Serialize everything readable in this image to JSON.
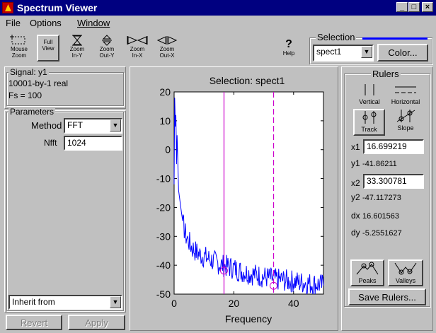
{
  "window": {
    "title": "Spectrum Viewer",
    "minimize": "_",
    "maximize": "□",
    "close": "×"
  },
  "menu": {
    "file": "File",
    "options": "Options",
    "window": "Window"
  },
  "toolbar": {
    "mouse_zoom": {
      "line1": "Mouse",
      "line2": "Zoom",
      "icon": "mouse-zoom-icon"
    },
    "full_view": {
      "line1": "Full",
      "line2": "View"
    },
    "zoom_in_y": {
      "line1": "Zoom",
      "line2": "In-Y",
      "icon": "zoom-in-y-icon"
    },
    "zoom_out_y": {
      "line1": "Zoom",
      "line2": "Out-Y",
      "icon": "zoom-out-y-icon"
    },
    "zoom_in_x": {
      "line1": "Zoom",
      "line2": "In-X",
      "icon": "zoom-in-x-icon"
    },
    "zoom_out_x": {
      "line1": "Zoom",
      "line2": "Out-X",
      "icon": "zoom-out-x-icon"
    },
    "help": {
      "symbol": "?",
      "label": "Help"
    }
  },
  "selection": {
    "group_label": "Selection",
    "value": "spect1",
    "color_button": "Color...",
    "line_color": "#0000ff"
  },
  "signal": {
    "group_label": "Signal: y1",
    "line1": "10001-by-1 real",
    "line2": "Fs = 100"
  },
  "parameters": {
    "group_label": "Parameters",
    "method_label": "Method",
    "method_value": "FFT",
    "nfft_label": "Nfft",
    "nfft_value": "1024",
    "inherit_value": "Inherit from",
    "revert": "Revert",
    "apply": "Apply"
  },
  "rulers": {
    "group_label": "Rulers",
    "vertical": "Vertical",
    "horizontal": "Horizontal",
    "track": "Track",
    "slope": "Slope",
    "x1_label": "x1",
    "x1_value": "16.699219",
    "y1_label": "y1",
    "y1_value": "-41.86211",
    "x2_label": "x2",
    "x2_value": "33.300781",
    "y2_label": "y2",
    "y2_value": "-47.117273",
    "dx_label": "dx",
    "dx_value": "16.601563",
    "dy_label": "dy",
    "dy_value": "-5.2551627",
    "peaks": "Peaks",
    "valleys": "Valleys",
    "save": "Save Rulers..."
  },
  "chart_data": {
    "type": "line",
    "title": "Selection: spect1",
    "xlabel": "Frequency",
    "ylabel": "",
    "xlim": [
      0,
      50
    ],
    "ylim": [
      -50,
      20
    ],
    "xticks": [
      0,
      20,
      40
    ],
    "yticks": [
      20,
      10,
      0,
      -10,
      -20,
      -30,
      -40,
      -50
    ],
    "grid": false,
    "series": [
      {
        "color": "#0000ff",
        "x": [
          0,
          0.2,
          0.4,
          0.6,
          0.8,
          1,
          1.5,
          2,
          2.5,
          3,
          4,
          5,
          6,
          7,
          8,
          10,
          12,
          14,
          16,
          18,
          20,
          22,
          24,
          26,
          28,
          30,
          32,
          34,
          36,
          38,
          40,
          42,
          44,
          46,
          48,
          50
        ],
        "y": [
          -12,
          18,
          8,
          12,
          -5,
          5,
          -14,
          -18,
          -22,
          -26,
          -30,
          -32,
          -34,
          -35,
          -36,
          -37,
          -38,
          -39,
          -40,
          -40.5,
          -41,
          -42,
          -42.5,
          -43,
          -43.5,
          -44,
          -44.5,
          -45,
          -45,
          -45.5,
          -45.5,
          -46,
          -46,
          -46.5,
          -46.5,
          -47
        ]
      }
    ],
    "rulers": [
      {
        "x": 16.699219,
        "y": -41.86211,
        "color": "#cc00cc",
        "style": "solid"
      },
      {
        "x": 33.300781,
        "y": -47.117273,
        "color": "#cc00cc",
        "style": "dashed"
      }
    ]
  }
}
